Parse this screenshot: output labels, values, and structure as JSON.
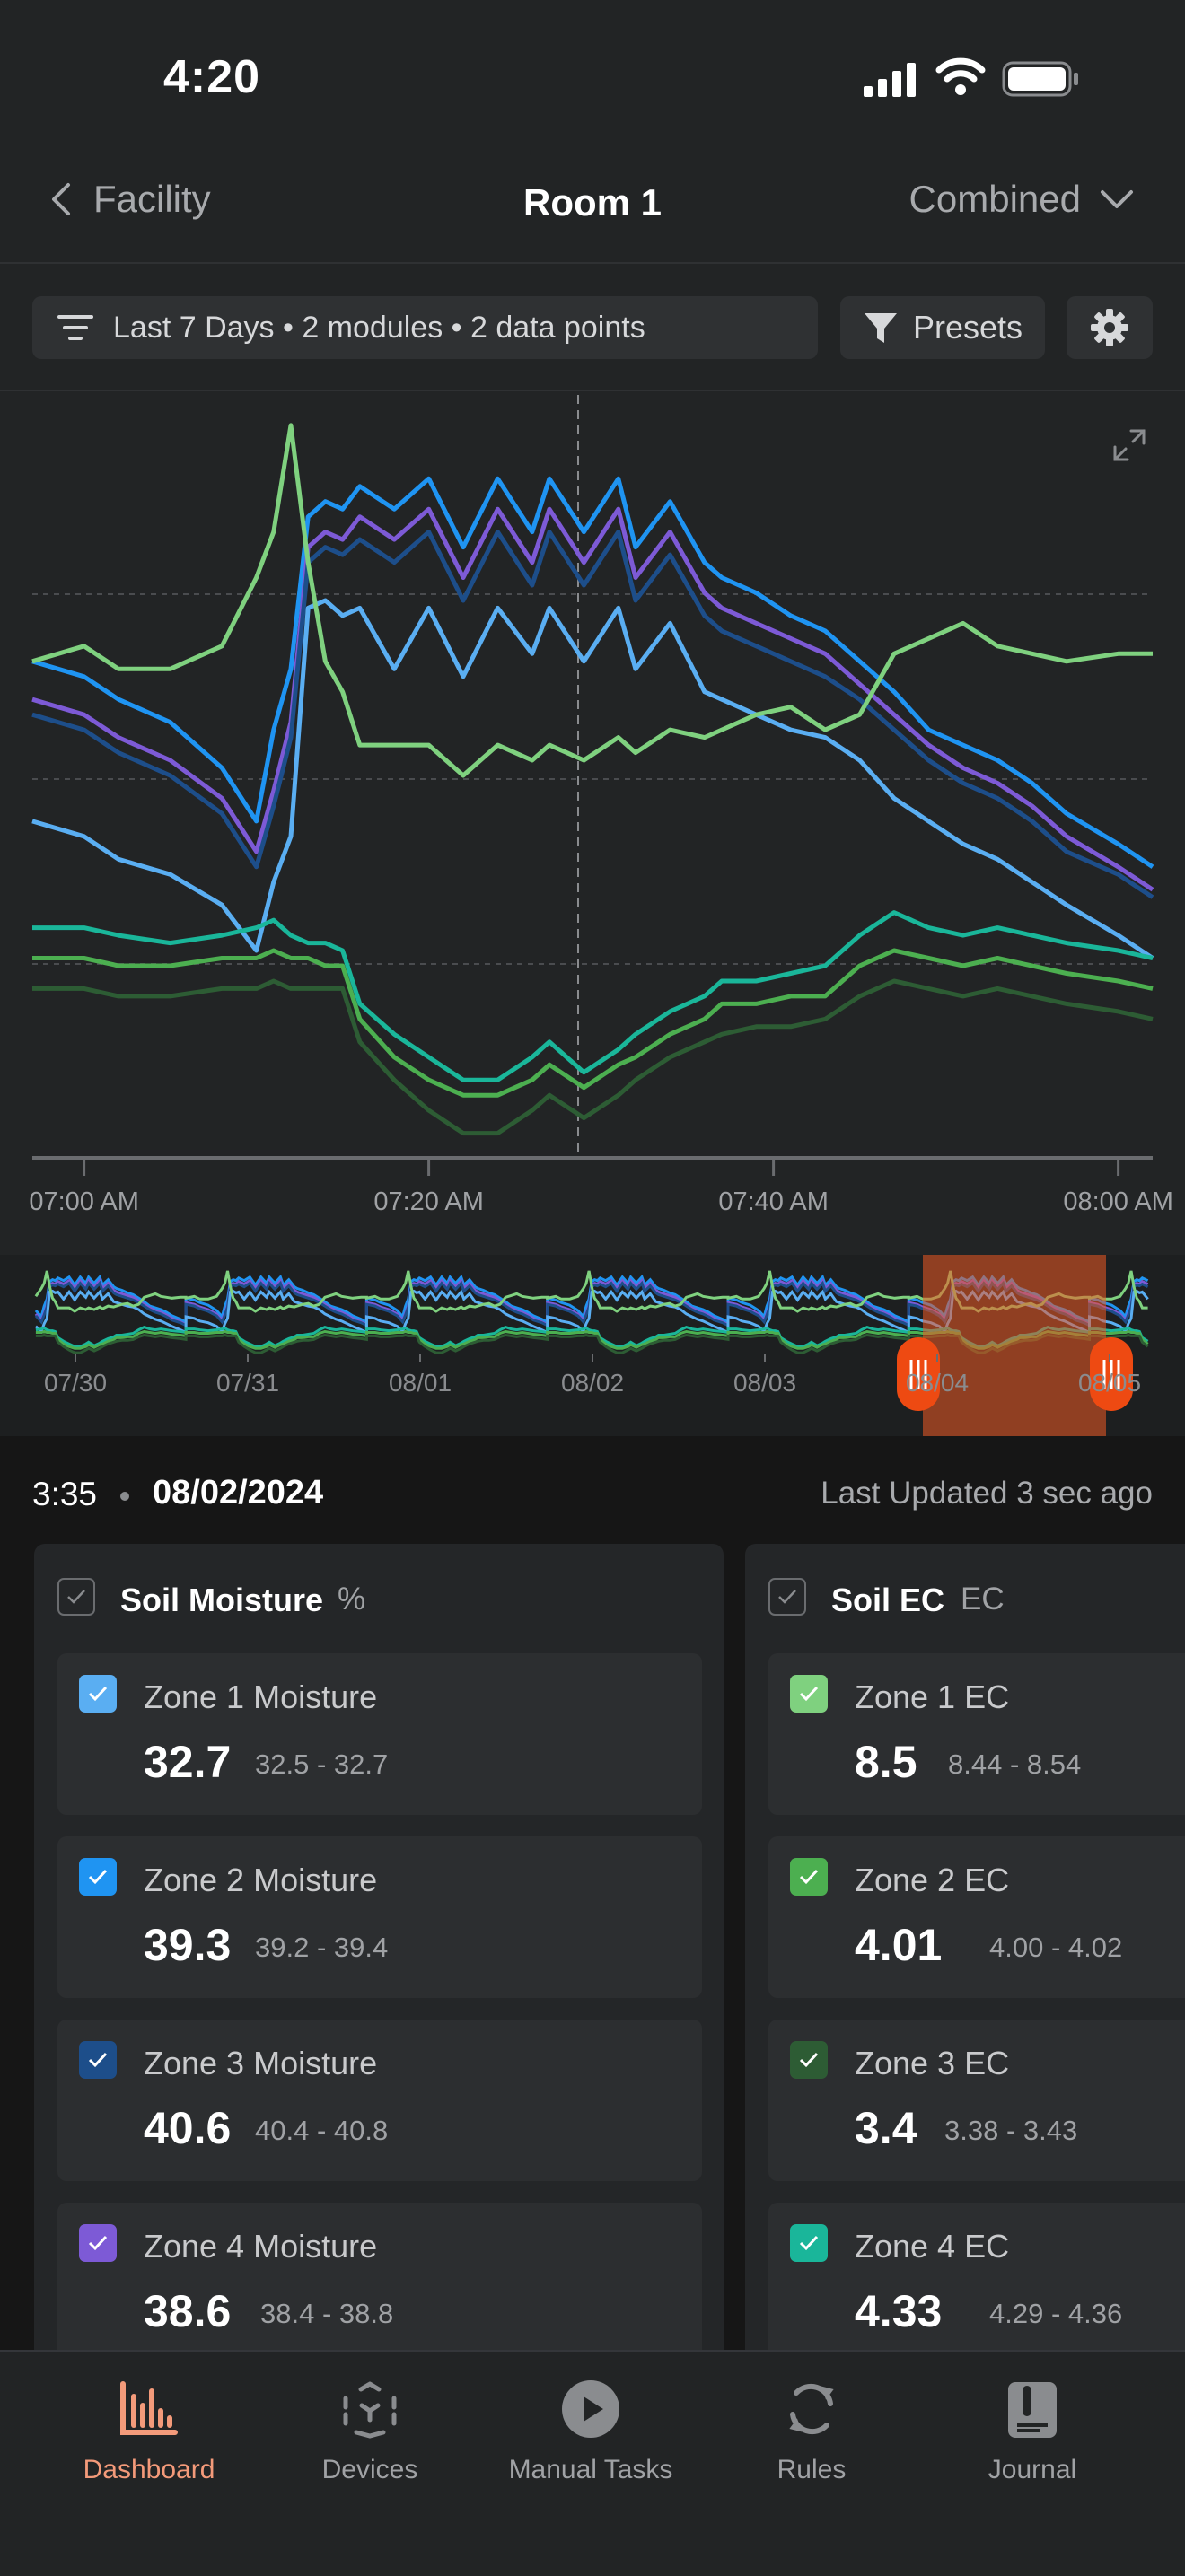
{
  "status_bar": {
    "time": "4:20"
  },
  "nav": {
    "back_label": "Facility",
    "title": "Room 1",
    "view_label": "Combined"
  },
  "filter": {
    "summary": "Last 7 Days • 2 modules • 2 data points",
    "presets_label": "Presets"
  },
  "colors": {
    "z1m": "#5aaef2",
    "z2m": "#1f94f2",
    "z3m": "#1d4e8a",
    "z4m": "#7d5ad6",
    "z1ec": "#7fd17f",
    "z2ec": "#4caf50",
    "z3ec": "#2d5c34",
    "z4ec": "#1ab69a",
    "accent": "#ee5a24",
    "bg": "#222425"
  },
  "chart_data": {
    "type": "line",
    "x": [
      "06:57",
      "07:00",
      "07:02",
      "07:05",
      "07:08",
      "07:10",
      "07:11",
      "07:12",
      "07:13",
      "07:14",
      "07:15",
      "07:16",
      "07:18",
      "07:20",
      "07:22",
      "07:24",
      "07:26",
      "07:27",
      "07:29",
      "07:31",
      "07:32",
      "07:34",
      "07:36",
      "07:37",
      "07:39",
      "07:41",
      "07:43",
      "07:45",
      "07:47",
      "07:49",
      "07:51",
      "07:53",
      "07:55",
      "07:57",
      "08:00",
      "08:02"
    ],
    "x_ticks": [
      "07:00 AM",
      "07:20 AM",
      "07:40 AM",
      "08:00 AM"
    ],
    "ylim": [
      0,
      100
    ],
    "grid": "horizontal dashed",
    "cursor_x": "07:29",
    "series": [
      {
        "color_key": "z2m",
        "values": [
          65,
          63,
          60,
          57,
          51,
          44,
          56,
          64,
          84,
          86,
          85,
          88,
          85,
          89,
          80,
          89,
          82,
          89,
          82,
          89,
          80,
          86,
          78,
          76,
          74,
          71,
          69,
          65,
          61,
          56,
          54,
          52,
          49,
          45,
          41,
          38
        ]
      },
      {
        "color_key": "z4m",
        "values": [
          60,
          58,
          55,
          52,
          47,
          40,
          48,
          57,
          80,
          82,
          81,
          84,
          81,
          85,
          76,
          85,
          78,
          85,
          78,
          85,
          76,
          82,
          74,
          72,
          70,
          68,
          66,
          62,
          58,
          54,
          51,
          49,
          46,
          42,
          38,
          35
        ]
      },
      {
        "color_key": "z3m",
        "values": [
          58,
          56,
          53,
          50,
          45,
          38,
          46,
          55,
          78,
          80,
          79,
          81,
          78,
          82,
          73,
          82,
          75,
          82,
          75,
          82,
          73,
          79,
          71,
          69,
          67,
          65,
          63,
          60,
          56,
          52,
          49,
          47,
          44,
          40,
          37,
          34
        ]
      },
      {
        "color_key": "z1m",
        "values": [
          44,
          42,
          39,
          37,
          33,
          27,
          36,
          42,
          72,
          73,
          71,
          72,
          64,
          72,
          63,
          72,
          66,
          72,
          65,
          72,
          64,
          70,
          61,
          60,
          58,
          56,
          55,
          52,
          47,
          44,
          41,
          39,
          36,
          33,
          29,
          26
        ]
      },
      {
        "color_key": "z1ec",
        "values": [
          65,
          67,
          64,
          64,
          67,
          76,
          82,
          96,
          78,
          65,
          61,
          54,
          54,
          54,
          50,
          54,
          52,
          54,
          52,
          55,
          53,
          56,
          55,
          56,
          58,
          59,
          56,
          58,
          66,
          68,
          70,
          67,
          66,
          65,
          66,
          66
        ]
      },
      {
        "color_key": "z4ec",
        "values": [
          30,
          30,
          29,
          28,
          29,
          30,
          31,
          29,
          28,
          28,
          27,
          20,
          16,
          13,
          10,
          10,
          13,
          15,
          11,
          14,
          16,
          19,
          21,
          23,
          23,
          24,
          25,
          29,
          32,
          30,
          29,
          30,
          29,
          28,
          27,
          26
        ]
      },
      {
        "color_key": "z2ec",
        "values": [
          26,
          26,
          25,
          25,
          26,
          26,
          27,
          26,
          26,
          25,
          25,
          18,
          13,
          10,
          8,
          8,
          10,
          12,
          9,
          12,
          13,
          16,
          18,
          20,
          20,
          21,
          21,
          25,
          27,
          26,
          25,
          26,
          25,
          24,
          23,
          22
        ]
      },
      {
        "color_key": "z3ec",
        "values": [
          22,
          22,
          21,
          21,
          22,
          22,
          23,
          22,
          22,
          22,
          22,
          15,
          10,
          6,
          3,
          3,
          6,
          8,
          5,
          8,
          10,
          13,
          15,
          16,
          17,
          17,
          18,
          21,
          23,
          22,
          21,
          22,
          21,
          20,
          19,
          18
        ]
      }
    ]
  },
  "navigator": {
    "dates": [
      "07/30",
      "07/31",
      "08/01",
      "08/02",
      "08/03",
      "08/04",
      "08/05"
    ]
  },
  "data_header": {
    "time": "3:35",
    "date": "08/02/2024",
    "updated": "Last Updated 3 sec ago"
  },
  "groups": [
    {
      "title": "Soil Moisture",
      "unit": "%",
      "sensors": [
        {
          "name": "Zone 1 Moisture",
          "value": "32.7",
          "range": "32.5 - 32.7",
          "color": "#5aaef2"
        },
        {
          "name": "Zone 2 Moisture",
          "value": "39.3",
          "range": "39.2 - 39.4",
          "color": "#1f94f2"
        },
        {
          "name": "Zone 3 Moisture",
          "value": "40.6",
          "range": "40.4 - 40.8",
          "color": "#1d4e8a"
        },
        {
          "name": "Zone 4 Moisture",
          "value": "38.6",
          "range": "38.4 - 38.8",
          "color": "#7d5ad6"
        }
      ]
    },
    {
      "title": "Soil EC",
      "unit": "EC",
      "sensors": [
        {
          "name": "Zone 1 EC",
          "value": "8.5",
          "range": "8.44 - 8.54",
          "color": "#7fd17f"
        },
        {
          "name": "Zone 2 EC",
          "value": "4.01",
          "range": "4.00 - 4.02",
          "color": "#4caf50"
        },
        {
          "name": "Zone 3 EC",
          "value": "3.4",
          "range": "3.38 - 3.43",
          "color": "#2d5c34"
        },
        {
          "name": "Zone 4 EC",
          "value": "4.33",
          "range": "4.29 - 4.36",
          "color": "#1ab69a"
        }
      ]
    }
  ],
  "tabs": [
    {
      "label": "Dashboard",
      "icon": "bar-chart-icon",
      "active": true
    },
    {
      "label": "Devices",
      "icon": "devices-icon",
      "active": false
    },
    {
      "label": "Manual Tasks",
      "icon": "play-icon",
      "active": false
    },
    {
      "label": "Rules",
      "icon": "refresh-icon",
      "active": false
    },
    {
      "label": "Journal",
      "icon": "journal-icon",
      "active": false
    }
  ]
}
